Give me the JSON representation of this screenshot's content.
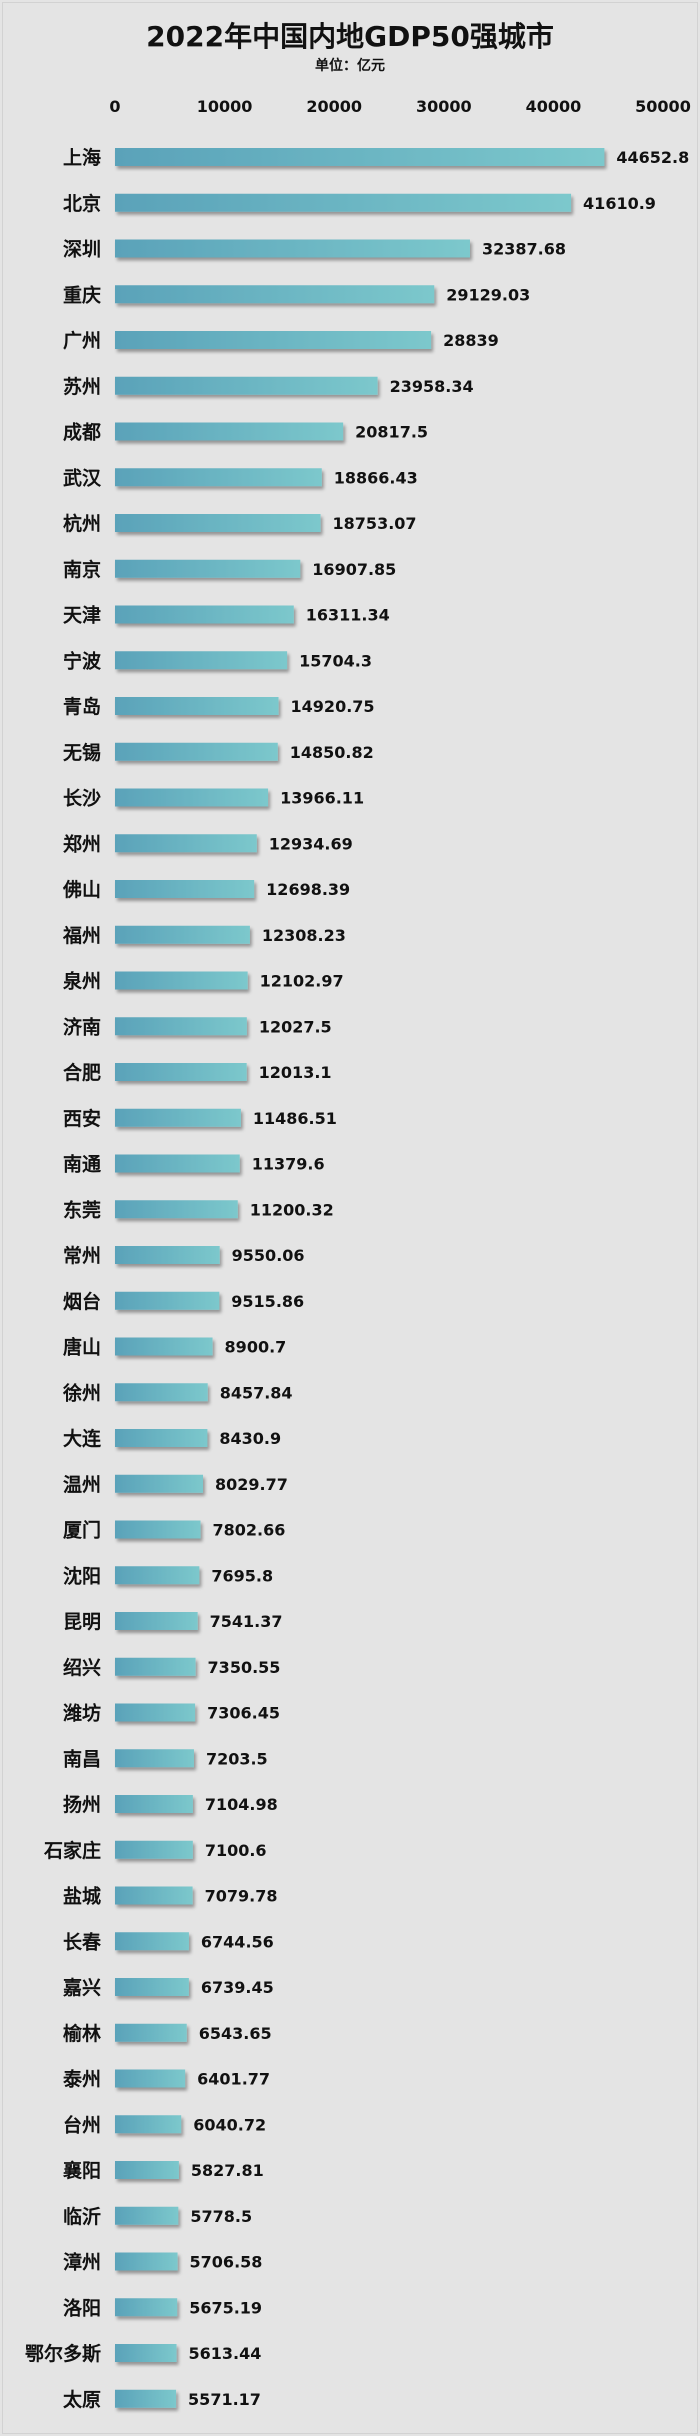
{
  "chart_data": {
    "type": "bar",
    "orientation": "horizontal",
    "title": "2022年中国内地GDP50强城市",
    "subtitle": "单位：亿元",
    "xlim": [
      0,
      50000
    ],
    "xticks": [
      "0",
      "10000",
      "20000",
      "30000",
      "40000",
      "50000"
    ],
    "grid": false,
    "colors": {
      "bar_start": "#5aa2b9",
      "bar_end": "#7cc8cc",
      "text": "#111111",
      "background": "#e4e4e4"
    },
    "categories": [
      "上海",
      "北京",
      "深圳",
      "重庆",
      "广州",
      "苏州",
      "成都",
      "武汉",
      "杭州",
      "南京",
      "天津",
      "宁波",
      "青岛",
      "无锡",
      "长沙",
      "郑州",
      "佛山",
      "福州",
      "泉州",
      "济南",
      "合肥",
      "西安",
      "南通",
      "东莞",
      "常州",
      "烟台",
      "唐山",
      "徐州",
      "大连",
      "温州",
      "厦门",
      "沈阳",
      "昆明",
      "绍兴",
      "潍坊",
      "南昌",
      "扬州",
      "石家庄",
      "盐城",
      "长春",
      "嘉兴",
      "榆林",
      "泰州",
      "台州",
      "襄阳",
      "临沂",
      "漳州",
      "洛阳",
      "鄂尔多斯",
      "太原"
    ],
    "values": [
      44652.8,
      41610.9,
      32387.68,
      29129.03,
      28839,
      23958.34,
      20817.5,
      18866.43,
      18753.07,
      16907.85,
      16311.34,
      15704.3,
      14920.75,
      14850.82,
      13966.11,
      12934.69,
      12698.39,
      12308.23,
      12102.97,
      12027.5,
      12013.1,
      11486.51,
      11379.6,
      11200.32,
      9550.06,
      9515.86,
      8900.7,
      8457.84,
      8430.9,
      8029.77,
      7802.66,
      7695.8,
      7541.37,
      7350.55,
      7306.45,
      7203.5,
      7104.98,
      7100.6,
      7079.78,
      6744.56,
      6739.45,
      6543.65,
      6401.77,
      6040.72,
      5827.81,
      5778.5,
      5706.58,
      5675.19,
      5613.44,
      5571.17
    ],
    "value_labels": [
      "44652.8",
      "41610.9",
      "32387.68",
      "29129.03",
      "28839",
      "23958.34",
      "20817.5",
      "18866.43",
      "18753.07",
      "16907.85",
      "16311.34",
      "15704.3",
      "14920.75",
      "14850.82",
      "13966.11",
      "12934.69",
      "12698.39",
      "12308.23",
      "12102.97",
      "12027.5",
      "12013.1",
      "11486.51",
      "11379.6",
      "11200.32",
      "9550.06",
      "9515.86",
      "8900.7",
      "8457.84",
      "8430.9",
      "8029.77",
      "7802.66",
      "7695.8",
      "7541.37",
      "7350.55",
      "7306.45",
      "7203.5",
      "7104.98",
      "7100.6",
      "7079.78",
      "6744.56",
      "6739.45",
      "6543.65",
      "6401.77",
      "6040.72",
      "5827.81",
      "5778.5",
      "5706.58",
      "5675.19",
      "5613.44",
      "5571.17"
    ]
  }
}
